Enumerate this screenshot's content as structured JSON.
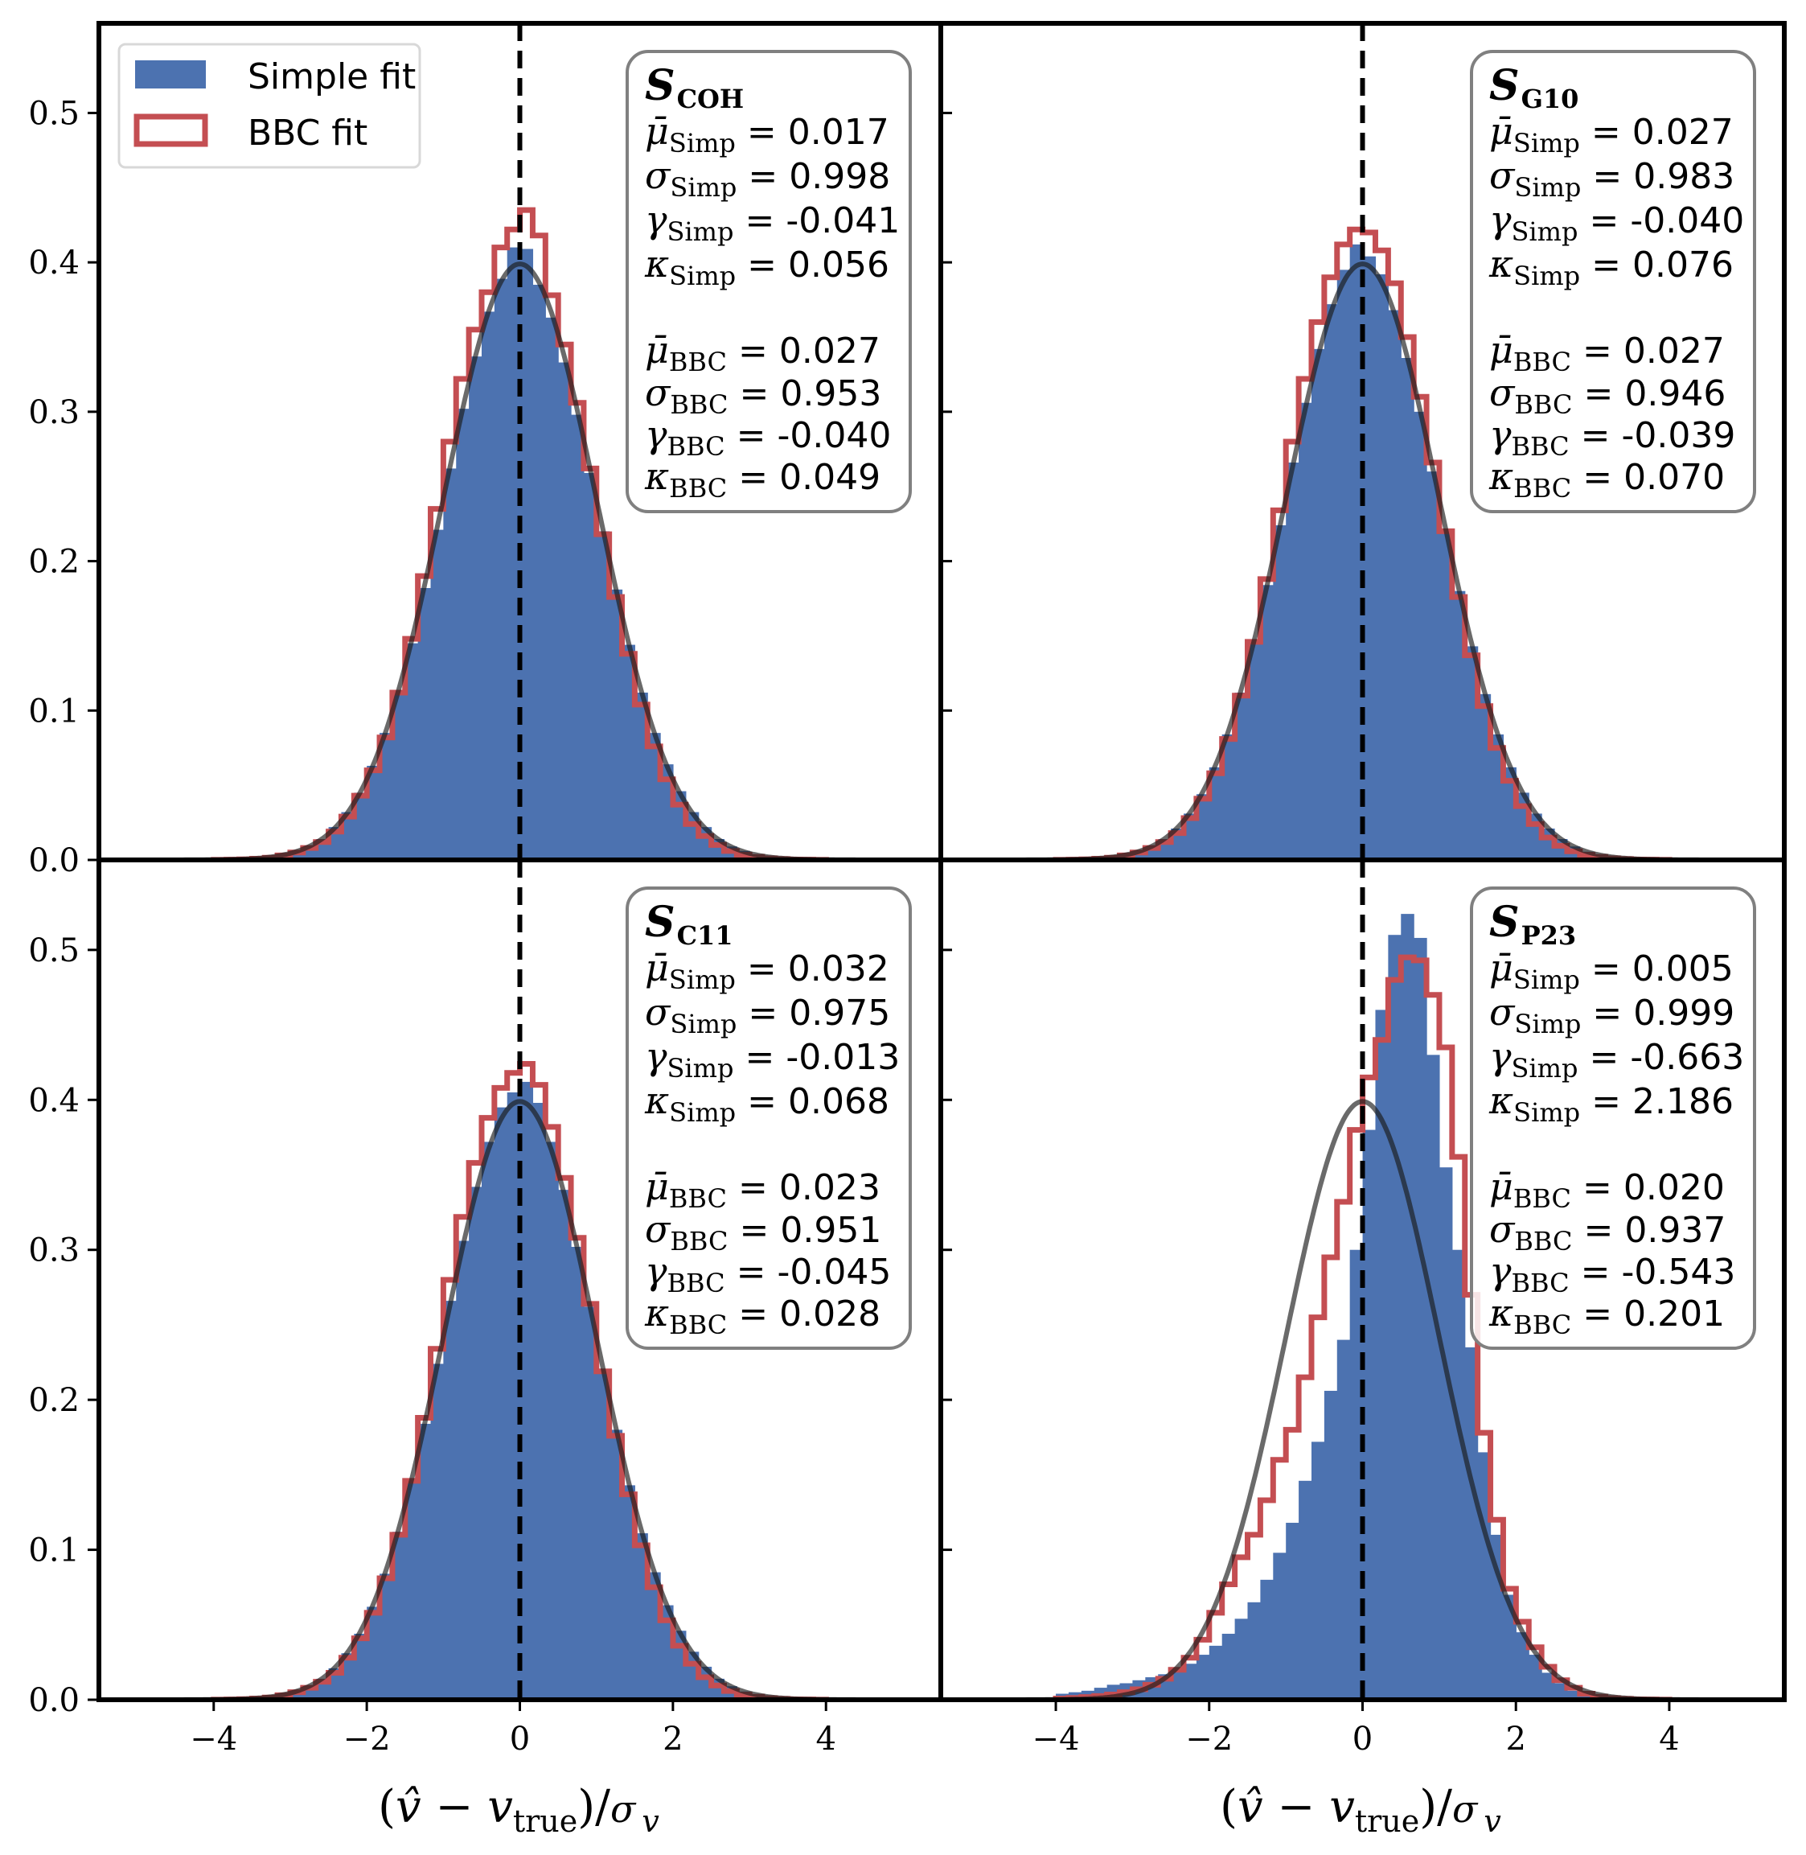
{
  "chart_data": {
    "type": "histogram-grid",
    "layout": "2x2 shared axes",
    "xlabel": {
      "open": "(",
      "vhat": "v̂",
      "minus": " − ",
      "v": "v",
      "sub": "true",
      "close": ")/",
      "sigma": "σ",
      "sigma_sub": "v"
    },
    "xlim": [
      -5.5,
      5.5
    ],
    "ylim": [
      0,
      0.56
    ],
    "xticks": [
      -4,
      -2,
      0,
      2,
      4
    ],
    "xtick_labels": [
      "−4",
      "−2",
      "0",
      "2",
      "4"
    ],
    "yticks": [
      0.0,
      0.1,
      0.2,
      0.3,
      0.4,
      0.5
    ],
    "ytick_labels": [
      "0.0",
      "0.1",
      "0.2",
      "0.3",
      "0.4",
      "0.5"
    ],
    "legend": {
      "placement": "upper-left (top-left panel)",
      "entries": [
        {
          "label": "Simple fit",
          "style": "filled",
          "color": "#4C72B0"
        },
        {
          "label": "BBC fit",
          "style": "step-outline",
          "color": "#C44E52"
        }
      ]
    },
    "reference_line": {
      "x": 0,
      "style": "dashed",
      "color": "#000000"
    },
    "reference_curve": {
      "type": "standard normal pdf",
      "mean": 0,
      "sigma": 1,
      "color": "#1a1a1a",
      "alpha": 0.65
    },
    "bins": {
      "start": -4.0,
      "width": 0.1667,
      "count": 48
    },
    "panels": [
      {
        "id": "COH",
        "title_symbol": "S",
        "title_sub": "COH",
        "stats": [
          {
            "sym": "μ̄",
            "sub": "Simp",
            "value": "0.017"
          },
          {
            "sym": "σ",
            "sub": "Simp",
            "value": "0.998"
          },
          {
            "sym": "γ",
            "sub": "Simp",
            "value": "-0.041"
          },
          {
            "sym": "κ",
            "sub": "Simp",
            "value": "0.056"
          },
          {
            "sym": "μ̄",
            "sub": "BBC",
            "value": "0.027"
          },
          {
            "sym": "σ",
            "sub": "BBC",
            "value": "0.953"
          },
          {
            "sym": "γ",
            "sub": "BBC",
            "value": "-0.040"
          },
          {
            "sym": "κ",
            "sub": "BBC",
            "value": "0.049"
          }
        ],
        "simple": [
          0.0002,
          0.0004,
          0.0007,
          0.0012,
          0.002,
          0.0035,
          0.006,
          0.009,
          0.014,
          0.022,
          0.032,
          0.045,
          0.063,
          0.085,
          0.113,
          0.145,
          0.182,
          0.221,
          0.262,
          0.302,
          0.337,
          0.367,
          0.389,
          0.41,
          0.409,
          0.385,
          0.363,
          0.333,
          0.298,
          0.259,
          0.22,
          0.181,
          0.144,
          0.112,
          0.085,
          0.064,
          0.046,
          0.032,
          0.022,
          0.014,
          0.009,
          0.006,
          0.0035,
          0.002,
          0.0012,
          0.0007,
          0.0004,
          0.0002
        ],
        "bbc": [
          0.0001,
          0.0002,
          0.0004,
          0.0008,
          0.0015,
          0.003,
          0.005,
          0.008,
          0.012,
          0.019,
          0.029,
          0.043,
          0.06,
          0.082,
          0.112,
          0.148,
          0.19,
          0.235,
          0.28,
          0.322,
          0.355,
          0.38,
          0.41,
          0.422,
          0.435,
          0.418,
          0.378,
          0.345,
          0.306,
          0.262,
          0.218,
          0.176,
          0.138,
          0.104,
          0.076,
          0.054,
          0.037,
          0.024,
          0.016,
          0.01,
          0.006,
          0.0035,
          0.002,
          0.0011,
          0.0006,
          0.0003,
          0.0002,
          0.0001
        ]
      },
      {
        "id": "G10",
        "title_symbol": "S",
        "title_sub": "G10",
        "stats": [
          {
            "sym": "μ̄",
            "sub": "Simp",
            "value": "0.027"
          },
          {
            "sym": "σ",
            "sub": "Simp",
            "value": "0.983"
          },
          {
            "sym": "γ",
            "sub": "Simp",
            "value": "-0.040"
          },
          {
            "sym": "κ",
            "sub": "Simp",
            "value": "0.076"
          },
          {
            "sym": "μ̄",
            "sub": "BBC",
            "value": "0.027"
          },
          {
            "sym": "σ",
            "sub": "BBC",
            "value": "0.946"
          },
          {
            "sym": "γ",
            "sub": "BBC",
            "value": "-0.039"
          },
          {
            "sym": "κ",
            "sub": "BBC",
            "value": "0.070"
          }
        ],
        "simple": [
          0.0002,
          0.0004,
          0.0007,
          0.0012,
          0.002,
          0.0035,
          0.006,
          0.009,
          0.014,
          0.021,
          0.031,
          0.044,
          0.062,
          0.084,
          0.112,
          0.146,
          0.184,
          0.224,
          0.266,
          0.306,
          0.342,
          0.372,
          0.395,
          0.412,
          0.404,
          0.392,
          0.368,
          0.336,
          0.3,
          0.26,
          0.219,
          0.18,
          0.143,
          0.111,
          0.084,
          0.062,
          0.045,
          0.031,
          0.021,
          0.014,
          0.009,
          0.0055,
          0.0033,
          0.002,
          0.0012,
          0.0007,
          0.0004,
          0.0002
        ],
        "bbc": [
          0.0001,
          0.0002,
          0.0004,
          0.0008,
          0.0015,
          0.003,
          0.005,
          0.008,
          0.012,
          0.018,
          0.028,
          0.041,
          0.058,
          0.081,
          0.11,
          0.146,
          0.188,
          0.234,
          0.28,
          0.322,
          0.36,
          0.39,
          0.412,
          0.422,
          0.42,
          0.408,
          0.386,
          0.35,
          0.31,
          0.266,
          0.22,
          0.176,
          0.137,
          0.103,
          0.075,
          0.053,
          0.036,
          0.024,
          0.015,
          0.0095,
          0.0058,
          0.0034,
          0.002,
          0.0011,
          0.0006,
          0.0003,
          0.0002,
          0.0001
        ]
      },
      {
        "id": "C11",
        "title_symbol": "S",
        "title_sub": "C11",
        "stats": [
          {
            "sym": "μ̄",
            "sub": "Simp",
            "value": "0.032"
          },
          {
            "sym": "σ",
            "sub": "Simp",
            "value": "0.975"
          },
          {
            "sym": "γ",
            "sub": "Simp",
            "value": "-0.013"
          },
          {
            "sym": "κ",
            "sub": "Simp",
            "value": "0.068"
          },
          {
            "sym": "μ̄",
            "sub": "BBC",
            "value": "0.023"
          },
          {
            "sym": "σ",
            "sub": "BBC",
            "value": "0.951"
          },
          {
            "sym": "γ",
            "sub": "BBC",
            "value": "-0.045"
          },
          {
            "sym": "κ",
            "sub": "BBC",
            "value": "0.028"
          }
        ],
        "simple": [
          0.0002,
          0.0004,
          0.0007,
          0.0012,
          0.002,
          0.0035,
          0.006,
          0.009,
          0.014,
          0.021,
          0.031,
          0.044,
          0.062,
          0.084,
          0.112,
          0.146,
          0.184,
          0.224,
          0.266,
          0.306,
          0.342,
          0.372,
          0.395,
          0.405,
          0.412,
          0.398,
          0.372,
          0.34,
          0.302,
          0.262,
          0.22,
          0.18,
          0.143,
          0.111,
          0.085,
          0.063,
          0.046,
          0.032,
          0.022,
          0.014,
          0.009,
          0.0055,
          0.0033,
          0.002,
          0.0012,
          0.0007,
          0.0004,
          0.0002
        ],
        "bbc": [
          0.0001,
          0.0002,
          0.0004,
          0.0008,
          0.0015,
          0.003,
          0.005,
          0.008,
          0.012,
          0.018,
          0.028,
          0.041,
          0.058,
          0.081,
          0.11,
          0.146,
          0.188,
          0.234,
          0.28,
          0.322,
          0.358,
          0.388,
          0.408,
          0.418,
          0.424,
          0.41,
          0.382,
          0.348,
          0.308,
          0.264,
          0.219,
          0.176,
          0.137,
          0.103,
          0.075,
          0.053,
          0.036,
          0.024,
          0.015,
          0.0095,
          0.0058,
          0.0034,
          0.002,
          0.0011,
          0.0006,
          0.0003,
          0.0002,
          0.0001
        ]
      },
      {
        "id": "P23",
        "title_symbol": "S",
        "title_sub": "P23",
        "stats": [
          {
            "sym": "μ̄",
            "sub": "Simp",
            "value": "0.005"
          },
          {
            "sym": "σ",
            "sub": "Simp",
            "value": "0.999"
          },
          {
            "sym": "γ",
            "sub": "Simp",
            "value": "-0.663"
          },
          {
            "sym": "κ",
            "sub": "Simp",
            "value": "2.186"
          },
          {
            "sym": "μ̄",
            "sub": "BBC",
            "value": "0.020"
          },
          {
            "sym": "σ",
            "sub": "BBC",
            "value": "0.937"
          },
          {
            "sym": "γ",
            "sub": "BBC",
            "value": "-0.543"
          },
          {
            "sym": "κ",
            "sub": "BBC",
            "value": "0.201"
          }
        ],
        "simple": [
          0.004,
          0.005,
          0.006,
          0.008,
          0.01,
          0.011,
          0.013,
          0.015,
          0.017,
          0.02,
          0.024,
          0.03,
          0.036,
          0.044,
          0.054,
          0.065,
          0.08,
          0.098,
          0.118,
          0.146,
          0.172,
          0.206,
          0.24,
          0.3,
          0.38,
          0.46,
          0.51,
          0.524,
          0.508,
          0.43,
          0.355,
          0.3,
          0.235,
          0.165,
          0.11,
          0.07,
          0.045,
          0.03,
          0.018,
          0.011,
          0.006,
          0.0035,
          0.002,
          0.0011,
          0.0006,
          0.0003,
          0.0002,
          0.0001
        ],
        "bbc": [
          0.0008,
          0.0012,
          0.0018,
          0.0025,
          0.0035,
          0.005,
          0.007,
          0.01,
          0.014,
          0.02,
          0.028,
          0.04,
          0.058,
          0.077,
          0.095,
          0.11,
          0.133,
          0.16,
          0.18,
          0.215,
          0.255,
          0.295,
          0.332,
          0.38,
          0.415,
          0.44,
          0.48,
          0.495,
          0.493,
          0.47,
          0.435,
          0.362,
          0.27,
          0.178,
          0.12,
          0.074,
          0.052,
          0.035,
          0.022,
          0.013,
          0.008,
          0.004,
          0.002,
          0.0011,
          0.0006,
          0.0003,
          0.0002,
          0.0001
        ]
      }
    ]
  }
}
